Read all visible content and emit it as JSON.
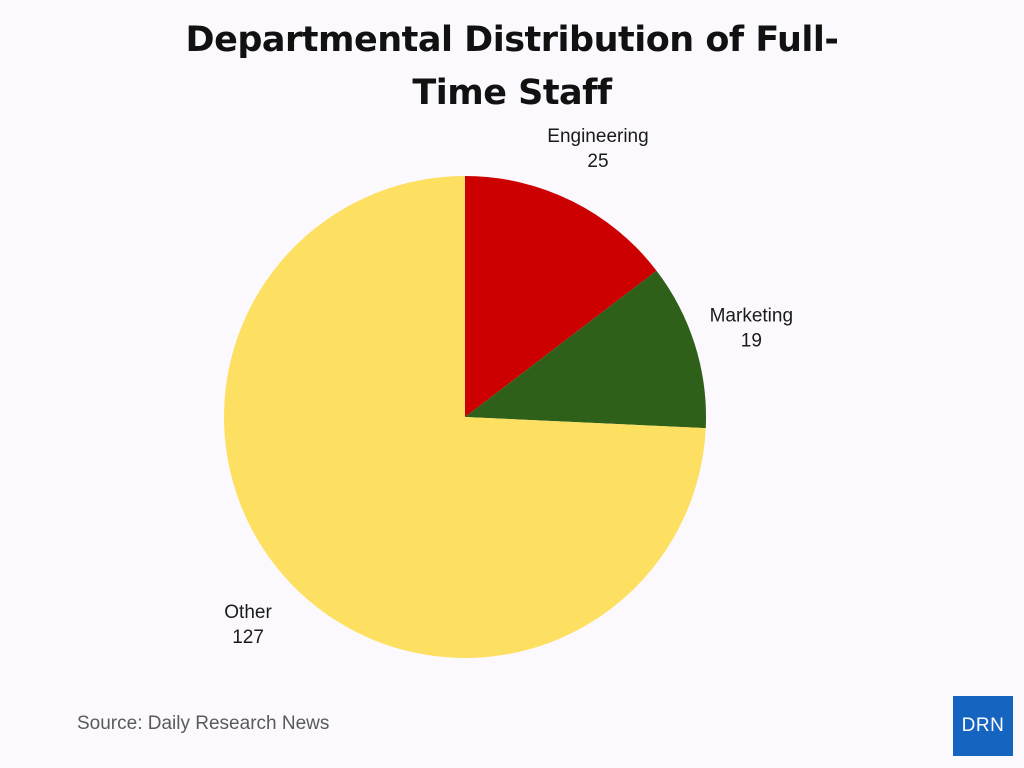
{
  "chart_data": {
    "type": "pie",
    "title_lines": [
      "Departmental Distribution of Full-",
      "Time Staff"
    ],
    "slices": [
      {
        "label": "Engineering",
        "value": 25,
        "color": "#cc0000"
      },
      {
        "label": "Marketing",
        "value": 19,
        "color": "#2e6019"
      },
      {
        "label": "Other",
        "value": 127,
        "color": "#fddf62"
      }
    ],
    "start_angle": "12 o'clock",
    "direction": "clockwise",
    "legend": "none",
    "labels": "outside, label over value"
  },
  "footer": {
    "source": "Source: Daily Research News",
    "logo_text": "DRN",
    "logo_color": "#1565c0"
  }
}
